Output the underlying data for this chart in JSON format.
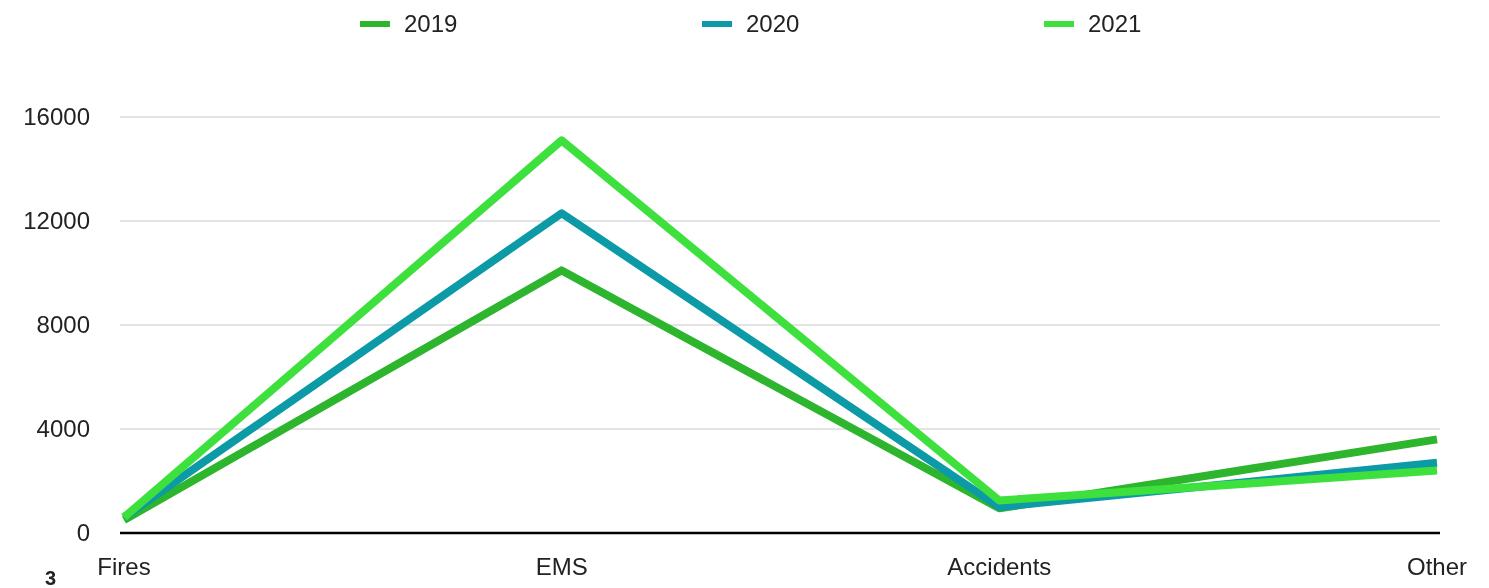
{
  "chart_data": {
    "type": "line",
    "categories": [
      "Fires",
      "EMS",
      "Accidents",
      "Other"
    ],
    "series": [
      {
        "name": "2019",
        "color": "#2db52d",
        "values": [
          500,
          10100,
          950,
          3600
        ]
      },
      {
        "name": "2020",
        "color": "#0b9aa6",
        "values": [
          600,
          12300,
          1000,
          2700
        ]
      },
      {
        "name": "2021",
        "color": "#3de03d",
        "values": [
          600,
          15100,
          1250,
          2400
        ]
      }
    ],
    "ylim": [
      0,
      16000
    ],
    "yticks": [
      0,
      4000,
      8000,
      12000,
      16000
    ],
    "grid": "y",
    "legend": "top",
    "marker": "none",
    "annotations": [
      "3"
    ]
  }
}
